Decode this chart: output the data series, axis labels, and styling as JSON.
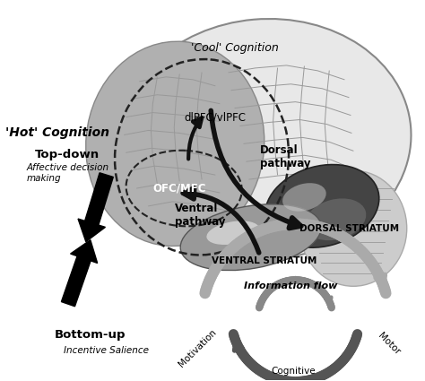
{
  "bg_color": "#ffffff",
  "labels": {
    "cool_cognition": "'Cool' Cognition",
    "dlpfc": "dlPFC/vlPFC",
    "ofc": "OFC/MFC",
    "hot_cognition": "'Hot' Cognition",
    "top_down": "Top-down",
    "affective": "Affective decision\nmaking",
    "dorsal_pathway": "Dorsal\npathway",
    "ventral_pathway": "Ventral\npathway",
    "dorsal_striatum": "DORSAL STRIATUM",
    "ventral_striatum": "VENTRAL STRIATUM",
    "bottom_up": "Bottom-up",
    "incentive": "Incentive Salience",
    "information_flow": "Information flow",
    "motivation": "Motivation",
    "cognitive": "Cognitive",
    "motor": "Motor"
  },
  "figure_size": [
    4.74,
    4.25
  ],
  "dpi": 100
}
